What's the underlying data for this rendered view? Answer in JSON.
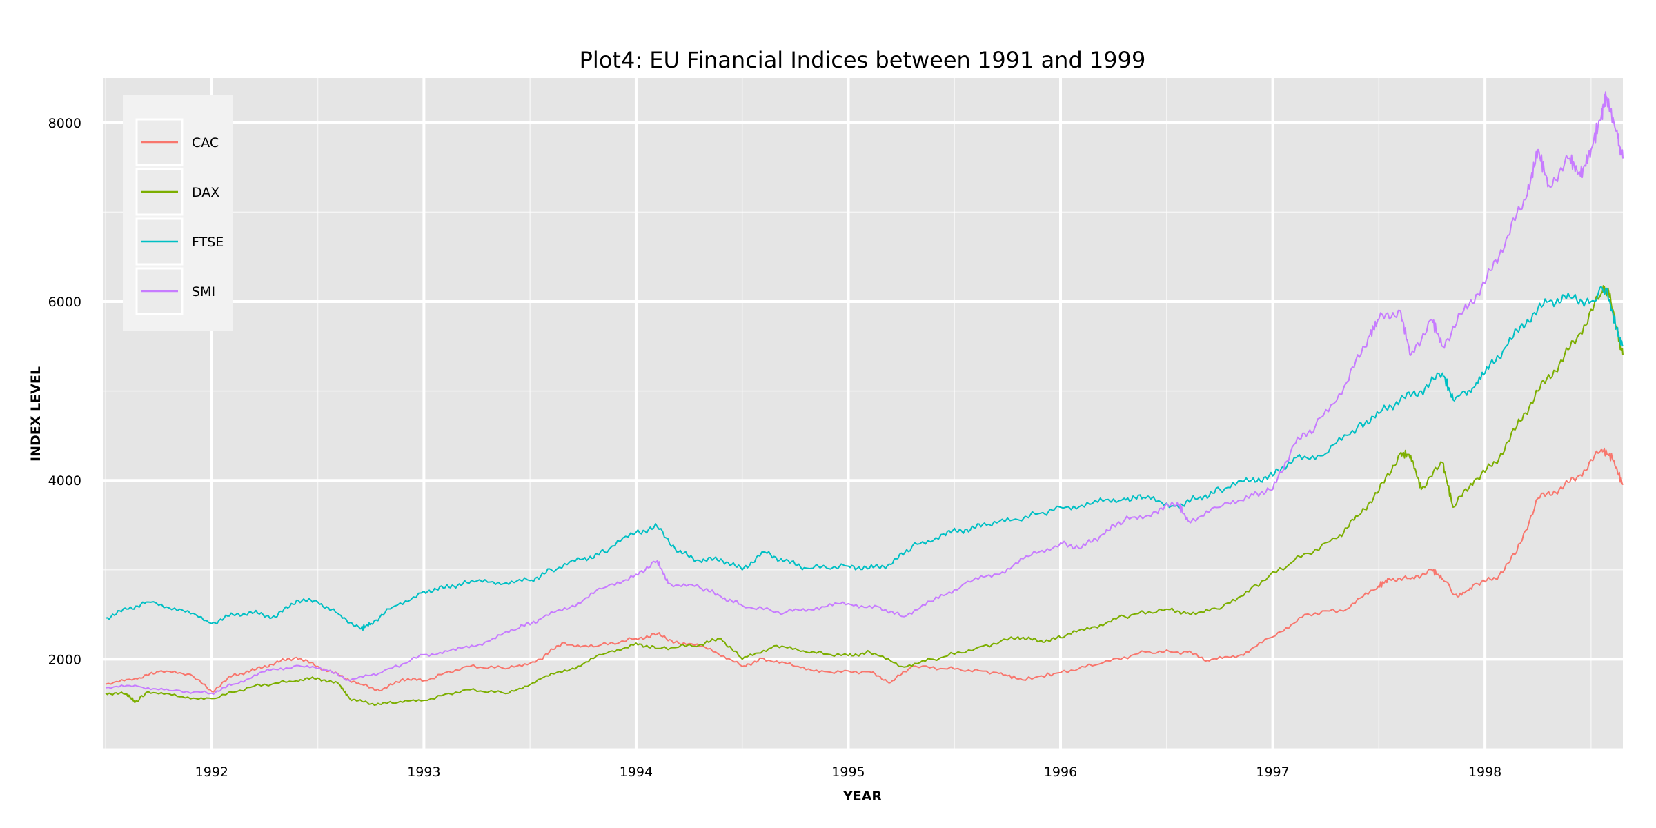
{
  "chart_data": {
    "type": "line",
    "title": "Plot4: EU Financial Indices between 1991 and 1999",
    "xlabel": "YEAR",
    "ylabel": "INDEX LEVEL",
    "xlim": [
      1991.49,
      1998.65
    ],
    "ylim": [
      1000,
      8500
    ],
    "x_ticks": [
      1992,
      1993,
      1994,
      1995,
      1996,
      1997,
      1998
    ],
    "y_ticks": [
      2000,
      4000,
      6000,
      8000
    ],
    "grid": true,
    "legend_position": "top-left",
    "background": "#e5e5e5",
    "grid_color": "#ffffff",
    "series": [
      {
        "name": "CAC",
        "color": "#f8766d",
        "points": [
          [
            1991.5,
            1720
          ],
          [
            1991.65,
            1780
          ],
          [
            1991.75,
            1860
          ],
          [
            1991.9,
            1830
          ],
          [
            1992.0,
            1640
          ],
          [
            1992.1,
            1820
          ],
          [
            1992.2,
            1880
          ],
          [
            1992.3,
            1960
          ],
          [
            1992.4,
            2020
          ],
          [
            1992.5,
            1920
          ],
          [
            1992.6,
            1820
          ],
          [
            1992.7,
            1720
          ],
          [
            1992.8,
            1650
          ],
          [
            1992.9,
            1780
          ],
          [
            1993.0,
            1760
          ],
          [
            1993.2,
            1920
          ],
          [
            1993.4,
            1900
          ],
          [
            1993.55,
            2000
          ],
          [
            1993.65,
            2180
          ],
          [
            1993.8,
            2140
          ],
          [
            1994.0,
            2230
          ],
          [
            1994.1,
            2280
          ],
          [
            1994.2,
            2180
          ],
          [
            1994.35,
            2120
          ],
          [
            1994.5,
            1920
          ],
          [
            1994.6,
            2010
          ],
          [
            1994.75,
            1920
          ],
          [
            1994.9,
            1860
          ],
          [
            1995.1,
            1860
          ],
          [
            1995.2,
            1740
          ],
          [
            1995.3,
            1920
          ],
          [
            1995.5,
            1890
          ],
          [
            1995.7,
            1850
          ],
          [
            1995.82,
            1770
          ],
          [
            1996.0,
            1850
          ],
          [
            1996.2,
            1960
          ],
          [
            1996.4,
            2080
          ],
          [
            1996.6,
            2080
          ],
          [
            1996.7,
            1980
          ],
          [
            1996.85,
            2050
          ],
          [
            1997.0,
            2250
          ],
          [
            1997.15,
            2500
          ],
          [
            1997.35,
            2560
          ],
          [
            1997.5,
            2820
          ],
          [
            1997.55,
            2900
          ],
          [
            1997.65,
            2900
          ],
          [
            1997.75,
            3000
          ],
          [
            1997.8,
            2900
          ],
          [
            1997.87,
            2700
          ],
          [
            1997.95,
            2840
          ],
          [
            1998.05,
            2900
          ],
          [
            1998.15,
            3200
          ],
          [
            1998.25,
            3800
          ],
          [
            1998.35,
            3900
          ],
          [
            1998.45,
            4060
          ],
          [
            1998.55,
            4350
          ],
          [
            1998.6,
            4250
          ],
          [
            1998.65,
            3950
          ]
        ]
      },
      {
        "name": "DAX",
        "color": "#7cae00",
        "points": [
          [
            1991.5,
            1620
          ],
          [
            1991.6,
            1610
          ],
          [
            1991.64,
            1520
          ],
          [
            1991.7,
            1640
          ],
          [
            1991.85,
            1580
          ],
          [
            1992.0,
            1560
          ],
          [
            1992.2,
            1700
          ],
          [
            1992.4,
            1760
          ],
          [
            1992.5,
            1790
          ],
          [
            1992.6,
            1720
          ],
          [
            1992.65,
            1560
          ],
          [
            1992.75,
            1500
          ],
          [
            1992.85,
            1510
          ],
          [
            1993.0,
            1540
          ],
          [
            1993.2,
            1660
          ],
          [
            1993.4,
            1620
          ],
          [
            1993.55,
            1780
          ],
          [
            1993.7,
            1900
          ],
          [
            1993.85,
            2060
          ],
          [
            1994.0,
            2180
          ],
          [
            1994.1,
            2120
          ],
          [
            1994.3,
            2160
          ],
          [
            1994.4,
            2230
          ],
          [
            1994.5,
            2000
          ],
          [
            1994.65,
            2150
          ],
          [
            1994.8,
            2080
          ],
          [
            1995.0,
            2040
          ],
          [
            1995.1,
            2080
          ],
          [
            1995.25,
            1920
          ],
          [
            1995.4,
            2000
          ],
          [
            1995.6,
            2120
          ],
          [
            1995.8,
            2250
          ],
          [
            1995.9,
            2200
          ],
          [
            1996.0,
            2240
          ],
          [
            1996.15,
            2360
          ],
          [
            1996.3,
            2480
          ],
          [
            1996.5,
            2560
          ],
          [
            1996.6,
            2520
          ],
          [
            1996.75,
            2560
          ],
          [
            1996.9,
            2800
          ],
          [
            1997.1,
            3100
          ],
          [
            1997.3,
            3350
          ],
          [
            1997.4,
            3600
          ],
          [
            1997.5,
            3880
          ],
          [
            1997.6,
            4300
          ],
          [
            1997.65,
            4280
          ],
          [
            1997.7,
            3900
          ],
          [
            1997.8,
            4200
          ],
          [
            1997.85,
            3700
          ],
          [
            1997.95,
            4000
          ],
          [
            1998.05,
            4200
          ],
          [
            1998.15,
            4600
          ],
          [
            1998.25,
            5000
          ],
          [
            1998.35,
            5300
          ],
          [
            1998.45,
            5650
          ],
          [
            1998.55,
            6100
          ],
          [
            1998.58,
            6150
          ],
          [
            1998.62,
            5700
          ],
          [
            1998.65,
            5400
          ]
        ]
      },
      {
        "name": "FTSE",
        "color": "#00bfc4",
        "points": [
          [
            1991.5,
            2460
          ],
          [
            1991.6,
            2560
          ],
          [
            1991.7,
            2640
          ],
          [
            1991.85,
            2560
          ],
          [
            1992.0,
            2400
          ],
          [
            1992.1,
            2500
          ],
          [
            1992.2,
            2520
          ],
          [
            1992.3,
            2470
          ],
          [
            1992.4,
            2660
          ],
          [
            1992.5,
            2640
          ],
          [
            1992.6,
            2500
          ],
          [
            1992.7,
            2340
          ],
          [
            1992.75,
            2400
          ],
          [
            1992.85,
            2580
          ],
          [
            1993.0,
            2760
          ],
          [
            1993.1,
            2800
          ],
          [
            1993.2,
            2860
          ],
          [
            1993.35,
            2860
          ],
          [
            1993.5,
            2880
          ],
          [
            1993.6,
            3000
          ],
          [
            1993.75,
            3120
          ],
          [
            1993.85,
            3200
          ],
          [
            1994.0,
            3420
          ],
          [
            1994.1,
            3480
          ],
          [
            1994.2,
            3200
          ],
          [
            1994.3,
            3100
          ],
          [
            1994.4,
            3120
          ],
          [
            1994.5,
            3000
          ],
          [
            1994.6,
            3200
          ],
          [
            1994.7,
            3100
          ],
          [
            1994.8,
            3020
          ],
          [
            1995.0,
            3040
          ],
          [
            1995.1,
            3020
          ],
          [
            1995.2,
            3060
          ],
          [
            1995.3,
            3260
          ],
          [
            1995.45,
            3400
          ],
          [
            1995.55,
            3450
          ],
          [
            1995.65,
            3500
          ],
          [
            1995.8,
            3560
          ],
          [
            1996.0,
            3700
          ],
          [
            1996.15,
            3740
          ],
          [
            1996.3,
            3800
          ],
          [
            1996.4,
            3800
          ],
          [
            1996.55,
            3720
          ],
          [
            1996.65,
            3800
          ],
          [
            1996.75,
            3900
          ],
          [
            1996.9,
            4000
          ],
          [
            1997.0,
            4050
          ],
          [
            1997.1,
            4250
          ],
          [
            1997.25,
            4300
          ],
          [
            1997.4,
            4600
          ],
          [
            1997.5,
            4750
          ],
          [
            1997.6,
            4900
          ],
          [
            1997.7,
            5000
          ],
          [
            1997.8,
            5200
          ],
          [
            1997.85,
            4900
          ],
          [
            1997.92,
            5000
          ],
          [
            1998.0,
            5200
          ],
          [
            1998.1,
            5500
          ],
          [
            1998.2,
            5800
          ],
          [
            1998.3,
            6000
          ],
          [
            1998.4,
            6050
          ],
          [
            1998.5,
            6000
          ],
          [
            1998.57,
            6150
          ],
          [
            1998.62,
            5700
          ],
          [
            1998.65,
            5500
          ]
        ]
      },
      {
        "name": "SMI",
        "color": "#c77cff",
        "points": [
          [
            1991.5,
            1680
          ],
          [
            1991.65,
            1700
          ],
          [
            1991.8,
            1650
          ],
          [
            1992.0,
            1620
          ],
          [
            1992.1,
            1720
          ],
          [
            1992.25,
            1860
          ],
          [
            1992.4,
            1930
          ],
          [
            1992.55,
            1870
          ],
          [
            1992.65,
            1760
          ],
          [
            1992.8,
            1850
          ],
          [
            1993.0,
            2050
          ],
          [
            1993.15,
            2100
          ],
          [
            1993.3,
            2200
          ],
          [
            1993.45,
            2350
          ],
          [
            1993.55,
            2450
          ],
          [
            1993.7,
            2600
          ],
          [
            1993.85,
            2800
          ],
          [
            1994.0,
            2950
          ],
          [
            1994.1,
            3100
          ],
          [
            1994.15,
            2850
          ],
          [
            1994.3,
            2800
          ],
          [
            1994.4,
            2700
          ],
          [
            1994.5,
            2600
          ],
          [
            1994.7,
            2520
          ],
          [
            1994.85,
            2580
          ],
          [
            1995.0,
            2620
          ],
          [
            1995.15,
            2580
          ],
          [
            1995.25,
            2480
          ],
          [
            1995.4,
            2650
          ],
          [
            1995.55,
            2850
          ],
          [
            1995.7,
            2950
          ],
          [
            1995.85,
            3150
          ],
          [
            1996.0,
            3300
          ],
          [
            1996.1,
            3250
          ],
          [
            1996.2,
            3400
          ],
          [
            1996.3,
            3550
          ],
          [
            1996.45,
            3650
          ],
          [
            1996.55,
            3750
          ],
          [
            1996.6,
            3550
          ],
          [
            1996.75,
            3700
          ],
          [
            1996.9,
            3850
          ],
          [
            1997.0,
            3900
          ],
          [
            1997.1,
            4400
          ],
          [
            1997.2,
            4600
          ],
          [
            1997.35,
            5100
          ],
          [
            1997.45,
            5600
          ],
          [
            1997.5,
            5800
          ],
          [
            1997.6,
            5900
          ],
          [
            1997.65,
            5400
          ],
          [
            1997.75,
            5800
          ],
          [
            1997.8,
            5500
          ],
          [
            1997.9,
            5900
          ],
          [
            1998.0,
            6200
          ],
          [
            1998.1,
            6700
          ],
          [
            1998.2,
            7200
          ],
          [
            1998.25,
            7700
          ],
          [
            1998.3,
            7300
          ],
          [
            1998.4,
            7600
          ],
          [
            1998.45,
            7400
          ],
          [
            1998.5,
            7700
          ],
          [
            1998.55,
            8100
          ],
          [
            1998.57,
            8300
          ],
          [
            1998.62,
            7900
          ],
          [
            1998.65,
            7600
          ]
        ]
      }
    ]
  }
}
